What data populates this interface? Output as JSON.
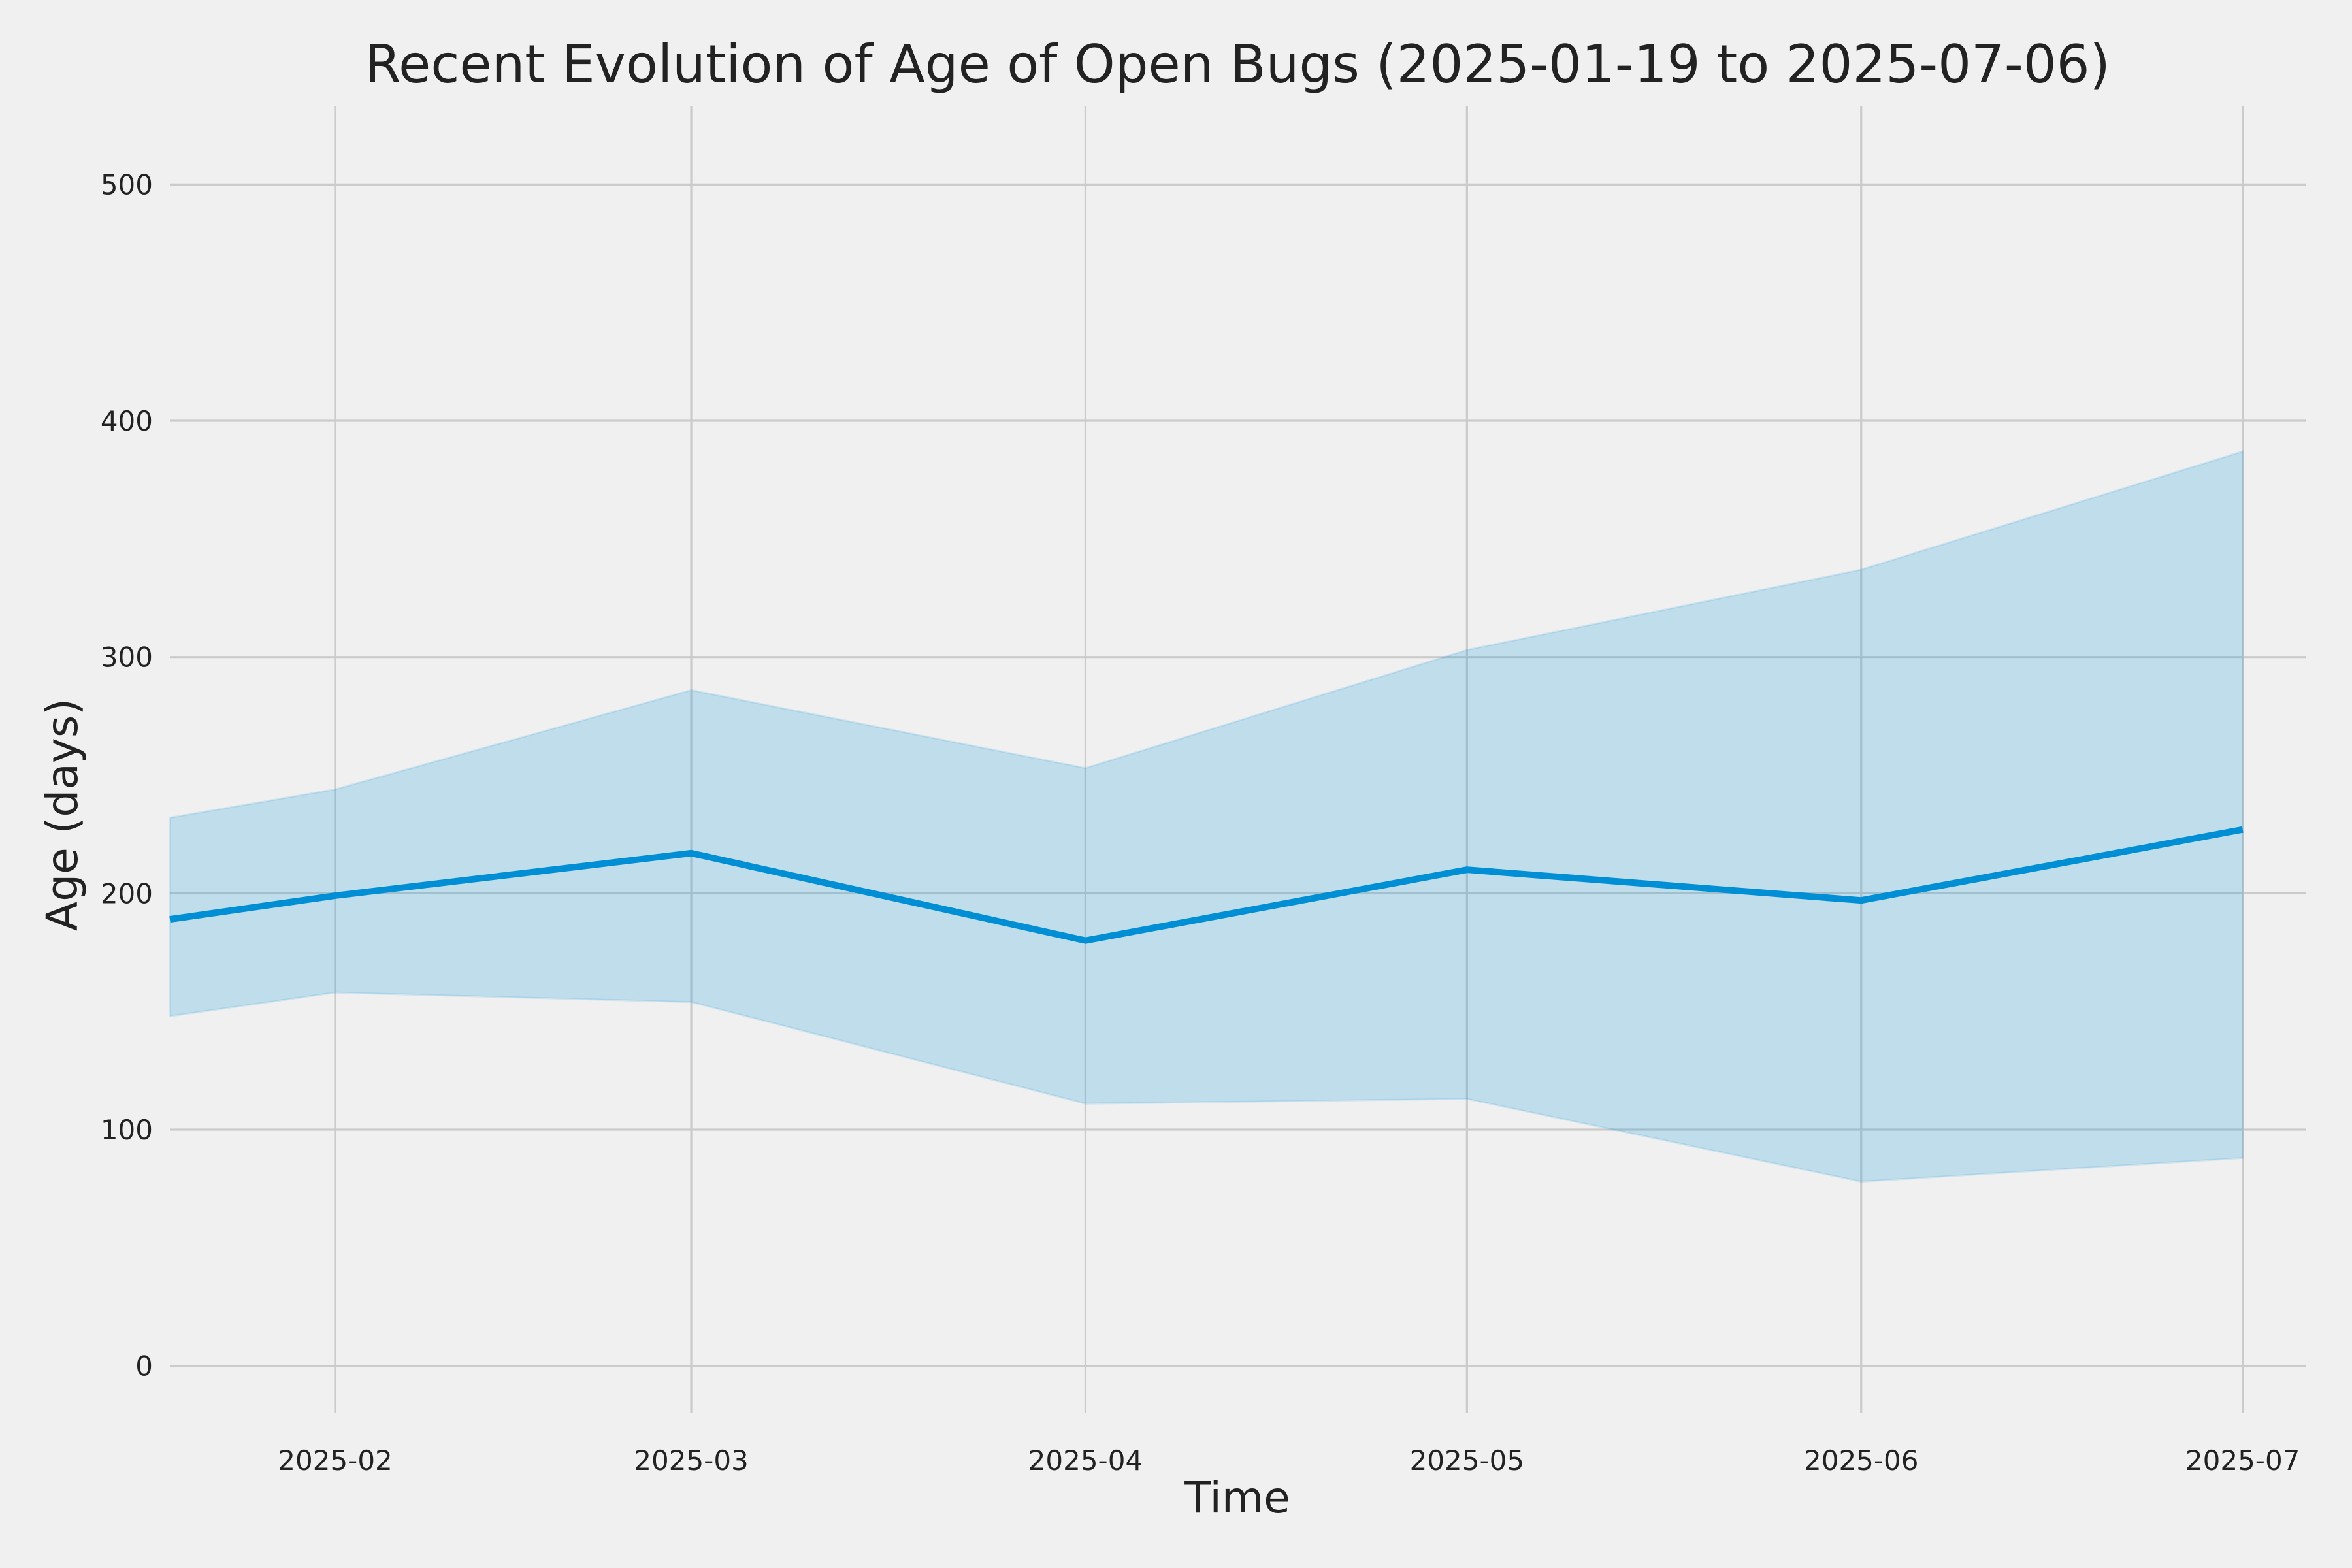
{
  "chart_data": {
    "type": "area",
    "title": "Recent Evolution of Age of Open Bugs (2025-01-19 to 2025-07-06)",
    "xlabel": "Time",
    "ylabel": "Age (days)",
    "xlim": [
      "2025-01-19",
      "2025-07-06"
    ],
    "ylim": [
      -20,
      533
    ],
    "x_ticks": [
      {
        "date": "2025-02-01",
        "label": "2025-02"
      },
      {
        "date": "2025-03-01",
        "label": "2025-03"
      },
      {
        "date": "2025-04-01",
        "label": "2025-04"
      },
      {
        "date": "2025-05-01",
        "label": "2025-05"
      },
      {
        "date": "2025-06-01",
        "label": "2025-06"
      },
      {
        "date": "2025-07-01",
        "label": "2025-07"
      }
    ],
    "y_ticks": [
      0,
      100,
      200,
      300,
      400,
      500
    ],
    "grid": true,
    "legend": "none",
    "x": [
      "2025-01-19",
      "2025-02-01",
      "2025-03-01",
      "2025-04-01",
      "2025-05-01",
      "2025-06-01",
      "2025-07-01"
    ],
    "series": [
      {
        "type": "line",
        "values": [
          189,
          199,
          217,
          180,
          210,
          197,
          227
        ],
        "color": "#008fd5"
      },
      {
        "type": "band",
        "lower": [
          148,
          158,
          154,
          111,
          113,
          78,
          88
        ],
        "upper": [
          232,
          244,
          286,
          253,
          303,
          337,
          387
        ],
        "color": "#008fd5",
        "opacity": 0.2
      }
    ]
  }
}
